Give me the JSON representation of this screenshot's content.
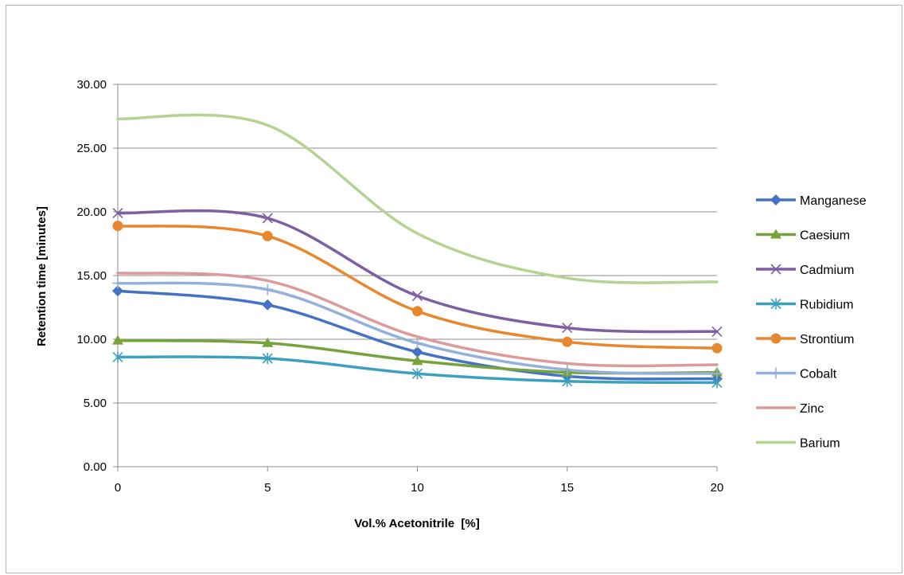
{
  "chart_data": {
    "type": "line",
    "title": "",
    "xlabel": "Vol.% Acetonitrile  [%]",
    "ylabel": "Retention time [minutes]",
    "x": [
      0,
      5,
      10,
      15,
      20
    ],
    "x_ticks": [
      "0",
      "5",
      "10",
      "15",
      "20"
    ],
    "xlim": [
      0,
      20
    ],
    "ylim": [
      0,
      30
    ],
    "y_ticks": [
      "0.00",
      "5.00",
      "10.00",
      "15.00",
      "20.00",
      "25.00",
      "30.00"
    ],
    "grid": "horizontal",
    "smoothed": true,
    "legend_position": "right",
    "series": [
      {
        "name": "Manganese",
        "color": "#4472c4",
        "marker": "diamond",
        "values": [
          13.8,
          12.7,
          9.0,
          7.1,
          6.9
        ]
      },
      {
        "name": "Caesium",
        "color": "#77a33c",
        "marker": "triangle",
        "values": [
          9.9,
          9.7,
          8.3,
          7.4,
          7.4
        ]
      },
      {
        "name": "Cadmium",
        "color": "#7e5fa3",
        "marker": "x",
        "values": [
          19.9,
          19.5,
          13.4,
          10.9,
          10.6
        ]
      },
      {
        "name": "Rubidium",
        "color": "#3ea0bf",
        "marker": "star",
        "values": [
          8.6,
          8.5,
          7.3,
          6.7,
          6.6
        ]
      },
      {
        "name": "Strontium",
        "color": "#e8872d",
        "marker": "circle",
        "values": [
          18.9,
          18.1,
          12.2,
          9.8,
          9.3
        ]
      },
      {
        "name": "Cobalt",
        "color": "#94b0dd",
        "marker": "plus",
        "values": [
          14.4,
          13.9,
          9.7,
          7.6,
          7.3
        ]
      },
      {
        "name": "Zinc",
        "color": "#dc9b9a",
        "marker": "none",
        "values": [
          15.2,
          14.6,
          10.2,
          8.1,
          8.0
        ]
      },
      {
        "name": "Barium",
        "color": "#b4d392",
        "marker": "none",
        "values": [
          27.3,
          26.8,
          18.3,
          14.8,
          14.5
        ]
      }
    ]
  }
}
